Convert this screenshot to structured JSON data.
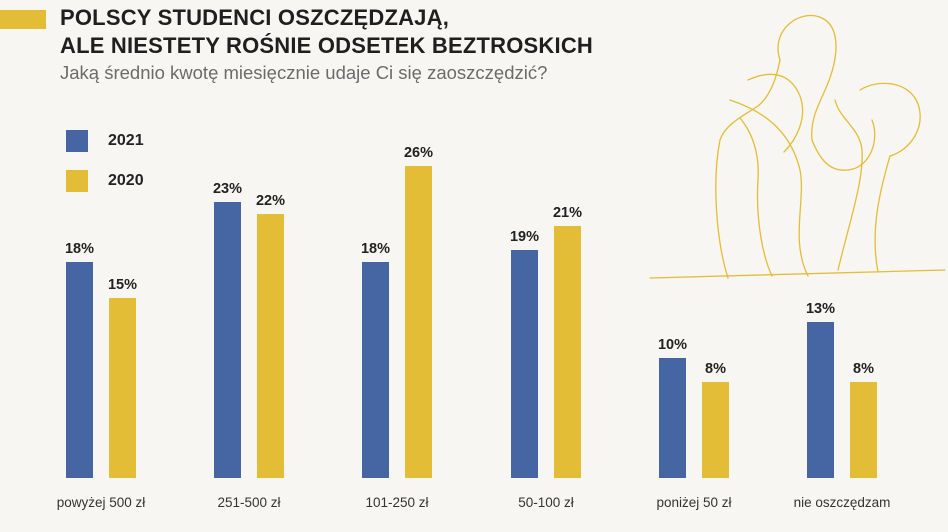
{
  "header": {
    "title_line1": "POLSCY STUDENCI OSZCZĘDZAJĄ,",
    "title_line2": "ALE NIESTETY ROŚNIE ODSETEK BEZTROSKICH",
    "subtitle": "Jaką średnio kwotę miesięcznie udaje Ci się zaoszczędzić?"
  },
  "colors": {
    "series_2021": "#4566a3",
    "series_2020": "#e2bd35",
    "accent": "#e2bd35",
    "line_art": "#e2bd35"
  },
  "chart_data": {
    "type": "bar",
    "categories": [
      "powyżej 500 zł",
      "251-500 zł",
      "101-250 zł",
      "50-100 zł",
      "poniżej 50 zł",
      "nie oszczędzam"
    ],
    "series": [
      {
        "name": "2021",
        "values": [
          18,
          23,
          18,
          19,
          10,
          13
        ]
      },
      {
        "name": "2020",
        "values": [
          15,
          22,
          26,
          21,
          8,
          8
        ]
      }
    ],
    "value_suffix": "%",
    "ylim": [
      0,
      26
    ],
    "legend": "top-left",
    "grid": false
  }
}
